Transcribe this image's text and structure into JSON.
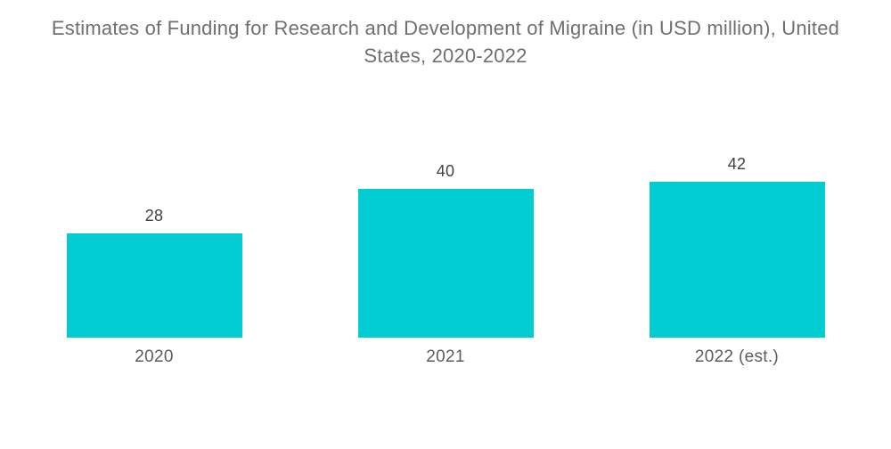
{
  "chart_data": {
    "type": "bar",
    "title": "Estimates of Funding for Research and Development of Migraine (in USD million), United States, 2020-2022",
    "categories": [
      "2020",
      "2021",
      "2022 (est.)"
    ],
    "values": [
      28,
      40,
      42
    ],
    "value_labels": [
      "28",
      "40",
      "42"
    ],
    "xlabel": "",
    "ylabel": "",
    "ylim": [
      0,
      42
    ],
    "grid": false,
    "legend": false,
    "bar_color": "#00CCD1"
  },
  "colors": {
    "background": "#FFFFFF",
    "title_text": "#6E6F72",
    "value_label_text": "#3F4245",
    "category_label_text": "#5A5C5E"
  }
}
